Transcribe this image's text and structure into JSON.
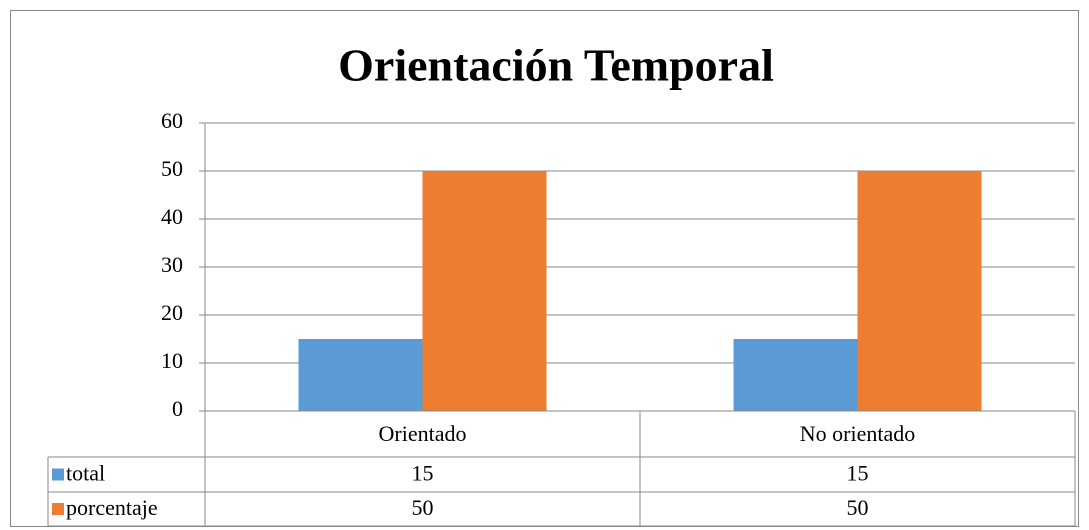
{
  "chart_data": {
    "type": "bar",
    "title": "Orientación Temporal",
    "categories": [
      "Orientado",
      "No orientado"
    ],
    "series": [
      {
        "name": "total",
        "color": "#5b9bd5",
        "values": [
          15,
          15
        ]
      },
      {
        "name": "porcentaje",
        "color": "#ed7d31",
        "values": [
          50,
          50
        ]
      }
    ],
    "ylim": [
      0,
      60
    ],
    "yticks": [
      0,
      10,
      20,
      30,
      40,
      50,
      60
    ],
    "grid": true,
    "data_table": true
  }
}
